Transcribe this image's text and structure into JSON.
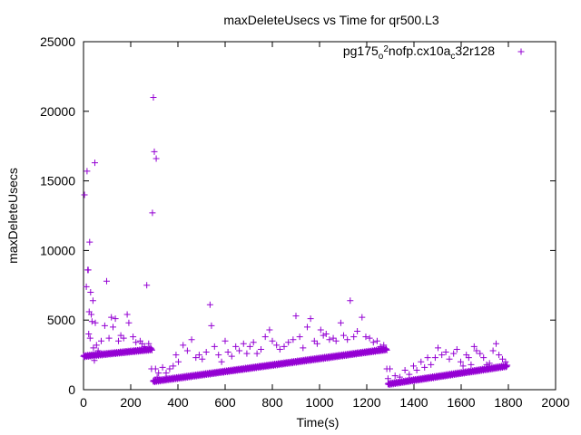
{
  "chart_data": {
    "type": "scatter",
    "title": "maxDeleteUsecs vs Time for qr500.L3",
    "xlabel": "Time(s)",
    "ylabel": "maxDeleteUsecs",
    "xlim": [
      0,
      2000
    ],
    "ylim": [
      0,
      25000
    ],
    "x_ticks": [
      "0",
      "200",
      "400",
      "600",
      "800",
      "1000",
      "1200",
      "1400",
      "1600",
      "1800",
      "2000"
    ],
    "y_ticks": [
      "0",
      "5000",
      "10000",
      "15000",
      "20000",
      "25000"
    ],
    "grid": false,
    "legend_position": "top-right",
    "marker": "+",
    "series": [
      {
        "name": "pg175_o2nofp.cx10a_c32r128",
        "color": "#9400d3",
        "segments": [
          {
            "x_start": 0,
            "x_end": 290,
            "y_start": 2400,
            "y_end": 2900
          },
          {
            "x_start": 295,
            "x_end": 1285,
            "y_start": 600,
            "y_end": 2900
          },
          {
            "x_start": 1290,
            "x_end": 1795,
            "y_start": 400,
            "y_end": 1700
          }
        ],
        "points": [
          [
            4,
            14000
          ],
          [
            12,
            7400
          ],
          [
            15,
            15700
          ],
          [
            18,
            8600
          ],
          [
            20,
            8600
          ],
          [
            22,
            4000
          ],
          [
            24,
            5600
          ],
          [
            26,
            10600
          ],
          [
            28,
            3700
          ],
          [
            30,
            7000
          ],
          [
            33,
            5400
          ],
          [
            36,
            4900
          ],
          [
            40,
            6400
          ],
          [
            42,
            3000
          ],
          [
            46,
            2100
          ],
          [
            48,
            16300
          ],
          [
            50,
            4800
          ],
          [
            55,
            3200
          ],
          [
            62,
            2800
          ],
          [
            75,
            3500
          ],
          [
            90,
            4600
          ],
          [
            98,
            7800
          ],
          [
            108,
            3700
          ],
          [
            118,
            5200
          ],
          [
            125,
            4500
          ],
          [
            135,
            5100
          ],
          [
            148,
            3500
          ],
          [
            158,
            3900
          ],
          [
            170,
            3700
          ],
          [
            185,
            5400
          ],
          [
            192,
            4800
          ],
          [
            210,
            3800
          ],
          [
            222,
            3400
          ],
          [
            240,
            3500
          ],
          [
            248,
            3300
          ],
          [
            258,
            3100
          ],
          [
            268,
            7500
          ],
          [
            276,
            3300
          ],
          [
            284,
            3000
          ],
          [
            288,
            1500
          ],
          [
            292,
            12700
          ],
          [
            296,
            21000
          ],
          [
            300,
            17100
          ],
          [
            303,
            600
          ],
          [
            305,
            1500
          ],
          [
            308,
            16600
          ],
          [
            312,
            900
          ],
          [
            318,
            1200
          ],
          [
            335,
            1600
          ],
          [
            350,
            1200
          ],
          [
            365,
            1500
          ],
          [
            380,
            1700
          ],
          [
            392,
            2500
          ],
          [
            402,
            2000
          ],
          [
            422,
            3200
          ],
          [
            440,
            2800
          ],
          [
            458,
            3600
          ],
          [
            476,
            2300
          ],
          [
            490,
            2500
          ],
          [
            503,
            2200
          ],
          [
            520,
            2700
          ],
          [
            536,
            6100
          ],
          [
            542,
            4600
          ],
          [
            555,
            3100
          ],
          [
            572,
            2500
          ],
          [
            585,
            2000
          ],
          [
            600,
            3500
          ],
          [
            612,
            2700
          ],
          [
            628,
            2400
          ],
          [
            645,
            3100
          ],
          [
            660,
            2800
          ],
          [
            678,
            3300
          ],
          [
            692,
            2600
          ],
          [
            705,
            3100
          ],
          [
            720,
            3400
          ],
          [
            735,
            2600
          ],
          [
            752,
            2900
          ],
          [
            770,
            3800
          ],
          [
            788,
            4300
          ],
          [
            800,
            3500
          ],
          [
            818,
            3200
          ],
          [
            832,
            2900
          ],
          [
            850,
            3100
          ],
          [
            868,
            3400
          ],
          [
            888,
            3600
          ],
          [
            900,
            5300
          ],
          [
            916,
            3800
          ],
          [
            930,
            3000
          ],
          [
            948,
            4500
          ],
          [
            962,
            5100
          ],
          [
            978,
            3500
          ],
          [
            990,
            3300
          ],
          [
            1005,
            4300
          ],
          [
            1016,
            3900
          ],
          [
            1028,
            4000
          ],
          [
            1042,
            3600
          ],
          [
            1058,
            3700
          ],
          [
            1070,
            3500
          ],
          [
            1090,
            4800
          ],
          [
            1102,
            3900
          ],
          [
            1118,
            3600
          ],
          [
            1130,
            6400
          ],
          [
            1145,
            3800
          ],
          [
            1160,
            4200
          ],
          [
            1180,
            5200
          ],
          [
            1196,
            3800
          ],
          [
            1212,
            3700
          ],
          [
            1228,
            3400
          ],
          [
            1244,
            3500
          ],
          [
            1258,
            3100
          ],
          [
            1272,
            3200
          ],
          [
            1285,
            1500
          ],
          [
            1290,
            800
          ],
          [
            1298,
            1500
          ],
          [
            1320,
            1000
          ],
          [
            1340,
            900
          ],
          [
            1362,
            1400
          ],
          [
            1380,
            1100
          ],
          [
            1398,
            1700
          ],
          [
            1412,
            1400
          ],
          [
            1430,
            2000
          ],
          [
            1445,
            1600
          ],
          [
            1458,
            2300
          ],
          [
            1472,
            1800
          ],
          [
            1490,
            2300
          ],
          [
            1502,
            3000
          ],
          [
            1518,
            2500
          ],
          [
            1535,
            2700
          ],
          [
            1550,
            2200
          ],
          [
            1568,
            2600
          ],
          [
            1582,
            2900
          ],
          [
            1598,
            2000
          ],
          [
            1608,
            1700
          ],
          [
            1622,
            2500
          ],
          [
            1632,
            2300
          ],
          [
            1642,
            1800
          ],
          [
            1655,
            3100
          ],
          [
            1665,
            2800
          ],
          [
            1680,
            2600
          ],
          [
            1695,
            2300
          ],
          [
            1708,
            1800
          ],
          [
            1720,
            1900
          ],
          [
            1735,
            2800
          ],
          [
            1748,
            3300
          ],
          [
            1760,
            2500
          ],
          [
            1775,
            2200
          ],
          [
            1788,
            2000
          ]
        ]
      }
    ]
  }
}
